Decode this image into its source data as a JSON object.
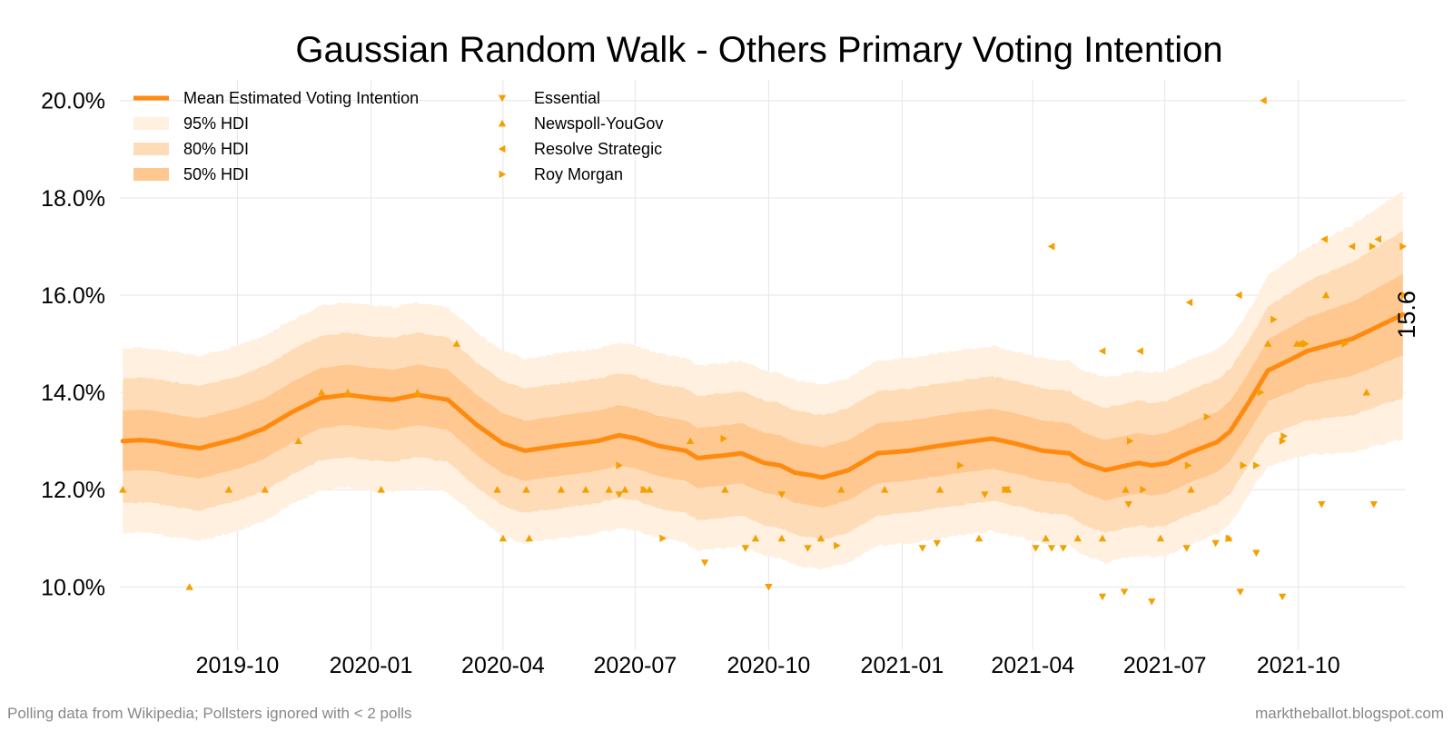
{
  "chart_data": {
    "type": "line",
    "title": "Gaussian Random Walk - Others Primary Voting Intention",
    "xlabel": "",
    "ylabel": "",
    "ylim": [
      8.7,
      20.35
    ],
    "xlim": [
      "2019-07-12",
      "2021-12-14"
    ],
    "grid": true,
    "legend_position": "top-left",
    "y_ticks": [
      10,
      12,
      14,
      16,
      18,
      20
    ],
    "y_tick_labels": [
      "10.0%",
      "12.0%",
      "14.0%",
      "16.0%",
      "18.0%",
      "20.0%"
    ],
    "x_ticks": [
      "2019-10-01",
      "2020-01-01",
      "2020-04-01",
      "2020-07-01",
      "2020-10-01",
      "2021-01-01",
      "2021-04-01",
      "2021-07-01",
      "2021-10-01"
    ],
    "x_tick_labels": [
      "2019-10",
      "2020-01",
      "2020-04",
      "2020-07",
      "2020-10",
      "2021-01",
      "2021-04",
      "2021-07",
      "2021-10"
    ],
    "end_label": "15.6",
    "colors": {
      "mean": "#ff8a10",
      "hdi95": "#fff0e0",
      "hdi80": "#ffdcb8",
      "hdi50": "#ffc890",
      "points": "#f5a000",
      "grid": "#e6e6e6"
    },
    "legend": {
      "mean": "Mean Estimated Voting Intention",
      "hdi95": "95% HDI",
      "hdi80": "80% HDI",
      "hdi50": "50% HDI",
      "pollsters": [
        "Essential",
        "Newspoll-YouGov",
        "Resolve Strategic",
        "Roy Morgan"
      ]
    },
    "mean_series": {
      "name": "Mean Estimated Voting Intention",
      "points": [
        [
          "2019-07-14",
          13.0
        ],
        [
          "2019-07-26",
          13.02
        ],
        [
          "2019-08-05",
          13.0
        ],
        [
          "2019-08-24",
          12.9
        ],
        [
          "2019-09-05",
          12.85
        ],
        [
          "2019-10-01",
          13.05
        ],
        [
          "2019-10-19",
          13.25
        ],
        [
          "2019-11-08",
          13.6
        ],
        [
          "2019-11-27",
          13.88
        ],
        [
          "2019-12-16",
          13.95
        ],
        [
          "2020-01-03",
          13.88
        ],
        [
          "2020-01-16",
          13.85
        ],
        [
          "2020-02-02",
          13.95
        ],
        [
          "2020-02-23",
          13.85
        ],
        [
          "2020-03-13",
          13.35
        ],
        [
          "2020-04-01",
          12.95
        ],
        [
          "2020-04-16",
          12.8
        ],
        [
          "2020-05-09",
          12.9
        ],
        [
          "2020-06-05",
          13.0
        ],
        [
          "2020-06-20",
          13.12
        ],
        [
          "2020-07-02",
          13.05
        ],
        [
          "2020-07-17",
          12.9
        ],
        [
          "2020-08-05",
          12.8
        ],
        [
          "2020-08-13",
          12.65
        ],
        [
          "2020-08-30",
          12.7
        ],
        [
          "2020-09-12",
          12.75
        ],
        [
          "2020-09-28",
          12.55
        ],
        [
          "2020-10-09",
          12.5
        ],
        [
          "2020-10-19",
          12.35
        ],
        [
          "2020-10-30",
          12.3
        ],
        [
          "2020-11-07",
          12.25
        ],
        [
          "2020-11-25",
          12.4
        ],
        [
          "2020-12-15",
          12.75
        ],
        [
          "2021-01-06",
          12.8
        ],
        [
          "2021-01-26",
          12.9
        ],
        [
          "2021-02-14",
          12.98
        ],
        [
          "2021-03-04",
          13.05
        ],
        [
          "2021-03-20",
          12.95
        ],
        [
          "2021-04-08",
          12.8
        ],
        [
          "2021-04-26",
          12.75
        ],
        [
          "2021-05-06",
          12.55
        ],
        [
          "2021-05-21",
          12.4
        ],
        [
          "2021-06-05",
          12.5
        ],
        [
          "2021-06-13",
          12.55
        ],
        [
          "2021-06-22",
          12.5
        ],
        [
          "2021-07-03",
          12.55
        ],
        [
          "2021-07-17",
          12.75
        ],
        [
          "2021-08-06",
          12.98
        ],
        [
          "2021-08-15",
          13.2
        ],
        [
          "2021-08-28",
          13.8
        ],
        [
          "2021-09-10",
          14.45
        ],
        [
          "2021-09-24",
          14.65
        ],
        [
          "2021-10-07",
          14.85
        ],
        [
          "2021-10-23",
          14.98
        ],
        [
          "2021-11-07",
          15.1
        ],
        [
          "2021-11-21",
          15.3
        ],
        [
          "2021-12-12",
          15.6
        ]
      ]
    },
    "bands": {
      "hdi95_halfwidth": 1.9,
      "hdi80_halfwidth": 1.28,
      "hdi50_halfwidth": 0.62
    },
    "polls": {
      "Essential": [
        [
          "2020-06-20",
          11.9
        ],
        [
          "2020-08-18",
          10.5
        ],
        [
          "2020-09-15",
          10.8
        ],
        [
          "2020-10-01",
          10.0
        ],
        [
          "2020-10-10",
          11.9
        ],
        [
          "2020-10-28",
          10.8
        ],
        [
          "2021-01-15",
          10.8
        ],
        [
          "2021-01-25",
          10.9
        ],
        [
          "2021-02-27",
          11.9
        ],
        [
          "2021-03-14",
          12.0
        ],
        [
          "2021-04-03",
          10.8
        ],
        [
          "2021-04-14",
          10.8
        ],
        [
          "2021-04-22",
          10.8
        ],
        [
          "2021-05-19",
          9.8
        ],
        [
          "2021-06-03",
          9.9
        ],
        [
          "2021-06-06",
          11.7
        ],
        [
          "2021-06-22",
          9.7
        ],
        [
          "2021-07-16",
          10.8
        ],
        [
          "2021-08-05",
          10.9
        ],
        [
          "2021-08-22",
          9.9
        ],
        [
          "2021-09-02",
          10.7
        ],
        [
          "2021-09-20",
          9.8
        ],
        [
          "2021-10-17",
          11.7
        ],
        [
          "2021-11-22",
          11.7
        ]
      ],
      "Newspoll-YouGov": [
        [
          "2019-07-14",
          12.0
        ],
        [
          "2019-08-29",
          10.0
        ],
        [
          "2019-09-25",
          12.0
        ],
        [
          "2019-10-20",
          12.0
        ],
        [
          "2019-11-12",
          13.0
        ],
        [
          "2019-11-28",
          14.0
        ],
        [
          "2019-12-16",
          14.0
        ],
        [
          "2020-01-08",
          12.0
        ],
        [
          "2020-02-02",
          14.0
        ],
        [
          "2020-02-29",
          15.0
        ],
        [
          "2020-03-28",
          12.0
        ],
        [
          "2020-04-01",
          11.0
        ],
        [
          "2020-04-17",
          12.0
        ],
        [
          "2020-04-19",
          11.0
        ],
        [
          "2020-05-11",
          12.0
        ],
        [
          "2020-05-28",
          12.0
        ],
        [
          "2020-06-13",
          12.0
        ],
        [
          "2020-06-24",
          12.0
        ],
        [
          "2020-07-07",
          12.0
        ],
        [
          "2020-07-11",
          12.0
        ],
        [
          "2020-08-08",
          13.0
        ],
        [
          "2020-09-01",
          12.0
        ],
        [
          "2020-09-22",
          11.0
        ],
        [
          "2020-10-10",
          11.0
        ],
        [
          "2020-11-06",
          11.0
        ],
        [
          "2020-11-20",
          12.0
        ],
        [
          "2020-12-20",
          12.0
        ],
        [
          "2021-01-27",
          12.0
        ],
        [
          "2021-02-23",
          11.0
        ],
        [
          "2021-03-15",
          12.0
        ],
        [
          "2021-04-10",
          11.0
        ],
        [
          "2021-05-02",
          11.0
        ],
        [
          "2021-05-19",
          11.0
        ],
        [
          "2021-06-04",
          12.0
        ],
        [
          "2021-06-28",
          11.0
        ],
        [
          "2021-07-19",
          12.0
        ],
        [
          "2021-08-14",
          11.0
        ],
        [
          "2021-09-10",
          15.0
        ],
        [
          "2021-09-30",
          15.0
        ],
        [
          "2021-10-20",
          16.0
        ],
        [
          "2021-11-17",
          14.0
        ]
      ],
      "Resolve Strategic": [
        [
          "2021-04-14",
          17.0
        ],
        [
          "2021-05-19",
          14.85
        ],
        [
          "2021-06-14",
          14.85
        ],
        [
          "2021-07-18",
          15.85
        ],
        [
          "2021-08-21",
          16.0
        ],
        [
          "2021-09-07",
          20.0
        ],
        [
          "2021-10-02",
          15.0
        ],
        [
          "2021-10-19",
          17.15
        ],
        [
          "2021-11-07",
          17.0
        ],
        [
          "2021-11-25",
          17.15
        ]
      ],
      "Roy Morgan": [
        [
          "2020-06-20",
          12.5
        ],
        [
          "2020-07-07",
          12.0
        ],
        [
          "2020-07-20",
          11.0
        ],
        [
          "2020-08-31",
          13.05
        ],
        [
          "2020-11-17",
          10.85
        ],
        [
          "2021-02-10",
          12.5
        ],
        [
          "2021-03-13",
          12.0
        ],
        [
          "2021-06-07",
          13.0
        ],
        [
          "2021-06-16",
          12.0
        ],
        [
          "2021-07-17",
          12.5
        ],
        [
          "2021-07-30",
          13.5
        ],
        [
          "2021-08-14",
          11.0
        ],
        [
          "2021-08-24",
          12.5
        ],
        [
          "2021-09-02",
          12.5
        ],
        [
          "2021-09-05",
          14.0
        ],
        [
          "2021-09-14",
          15.5
        ],
        [
          "2021-09-20",
          13.0
        ],
        [
          "2021-09-21",
          13.1
        ],
        [
          "2021-10-06",
          15.0
        ],
        [
          "2021-11-02",
          15.0
        ],
        [
          "2021-11-21",
          17.0
        ],
        [
          "2021-12-12",
          17.0
        ],
        [
          "2021-12-13",
          16.0
        ]
      ]
    }
  },
  "footer": {
    "left": "Polling data from Wikipedia; Pollsters ignored with < 2 polls",
    "right": "marktheballot.blogspot.com"
  }
}
